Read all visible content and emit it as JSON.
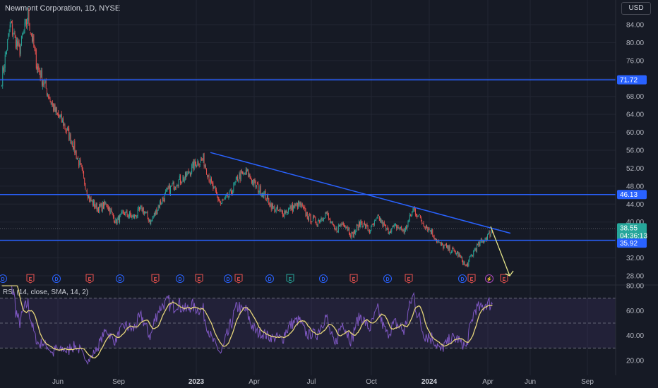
{
  "header": {
    "title": "Newmont Corporation, 1D, NYSE",
    "currency": "USD"
  },
  "rsi_title": "RSI (14, close, SMA, 14, 2)",
  "colors": {
    "bg": "#161a25",
    "up": "#26a69a",
    "down": "#ef5350",
    "level": "#2962ff",
    "trend": "#2962ff",
    "forecast": "#e6e68a",
    "rsi": "#7e57c2",
    "rsi_ma": "#e6d57a",
    "grid": "#222633"
  },
  "chart_data": [
    {
      "type": "candlestick",
      "x_ticks": [
        "Jun",
        "Sep",
        "2023",
        "Apr",
        "Jul",
        "Oct",
        "2024",
        "Apr",
        "Jun",
        "Sep"
      ],
      "y_ticks": [
        "84.00",
        "80.00",
        "76.00",
        "72.00",
        "68.00",
        "64.00",
        "60.00",
        "56.00",
        "52.00",
        "48.00",
        "44.00",
        "40.00",
        "36.00",
        "32.00",
        "28.00"
      ],
      "ylim": [
        26,
        88
      ],
      "price_labels": [
        "71.72",
        "46.13",
        "38.55",
        "04:36:13",
        "35.92"
      ],
      "horizontal_levels": [
        71.72,
        46.13,
        35.92
      ],
      "last_close": 38.55,
      "trendline": [
        {
          "x": "2022-12",
          "y": 55.5
        },
        {
          "x": "2024-05",
          "y": 37.5
        }
      ],
      "forecast": [
        {
          "x": "2024-04",
          "y": 39
        },
        {
          "x": "2024-05",
          "y": 28
        }
      ],
      "event_markers": [
        "D",
        "E",
        "D",
        "E",
        "D",
        "E",
        "D",
        "E",
        "D",
        "E",
        "D",
        "E",
        "D",
        "E",
        "D",
        "E",
        "D",
        "E",
        "⚡",
        "E"
      ],
      "close_series": [
        72,
        84,
        78,
        86,
        75,
        70,
        65,
        62,
        58,
        52,
        45,
        43,
        44,
        40,
        42,
        41,
        43,
        40,
        44,
        47,
        49,
        50,
        53,
        54,
        48,
        44,
        46,
        50,
        51,
        48,
        46,
        43,
        42,
        43,
        44,
        41,
        40,
        42,
        38,
        40,
        37,
        40,
        38,
        41,
        38,
        39,
        38,
        43,
        40,
        38,
        35,
        34,
        33,
        30,
        34,
        36,
        38
      ]
    },
    {
      "type": "line",
      "name": "RSI",
      "y_ticks": [
        "80.00",
        "60.00",
        "40.00",
        "20.00"
      ],
      "ylim": [
        14,
        80
      ],
      "bands": [
        70,
        50,
        30
      ]
    }
  ]
}
